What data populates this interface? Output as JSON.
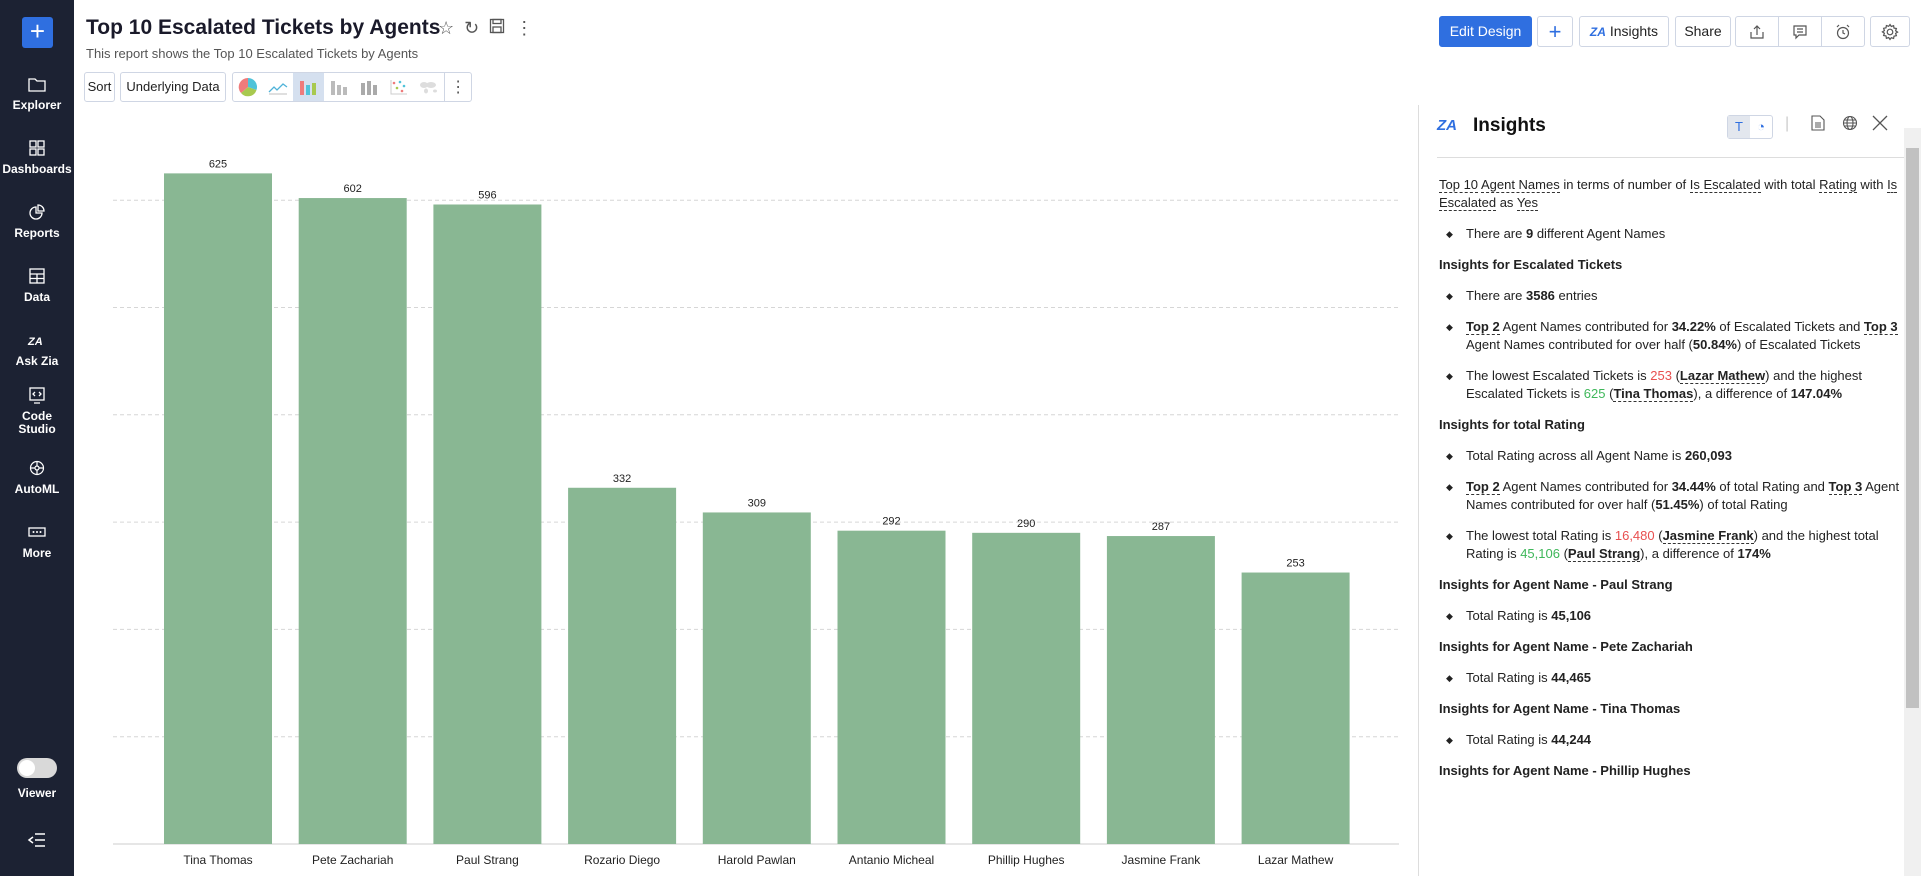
{
  "sidebar": {
    "items": [
      {
        "label": "Explorer",
        "icon": "folder-icon"
      },
      {
        "label": "Dashboards",
        "icon": "grid-icon"
      },
      {
        "label": "Reports",
        "icon": "pie-icon"
      },
      {
        "label": "Data",
        "icon": "table-icon"
      },
      {
        "label": "Ask Zia",
        "icon": "zia-icon"
      },
      {
        "label": "Code Studio",
        "icon": "code-icon"
      },
      {
        "label": "AutoML",
        "icon": "brain-icon"
      },
      {
        "label": "More",
        "icon": "more-icon"
      }
    ],
    "viewer_label": "Viewer"
  },
  "header": {
    "title": "Top 10 Escalated Tickets by Agents",
    "subtitle": "This report shows the Top 10 Escalated Tickets by Agents",
    "sort_label": "Sort",
    "underlying_label": "Underlying Data",
    "edit_design_label": "Edit Design",
    "insights_label": "Insights",
    "share_label": "Share",
    "zia_logo": "ZIA"
  },
  "colors": {
    "bar": "#89b793",
    "accent": "#2f6fe0",
    "sidebar": "#1c2233",
    "low": "#e84f4f",
    "high": "#3fb75a"
  },
  "chart_data": {
    "type": "bar",
    "categories": [
      "Tina Thomas",
      "Pete Zachariah",
      "Paul Strang",
      "Rozario Diego",
      "Harold Pawlan",
      "Antanio Micheal",
      "Phillip Hughes",
      "Jasmine Frank",
      "Lazar Mathew"
    ],
    "values": [
      625,
      602,
      596,
      332,
      309,
      292,
      290,
      287,
      253
    ],
    "ylim": [
      0,
      625
    ],
    "grid": true,
    "gridlines": [
      100,
      200,
      300,
      400,
      500,
      600
    ],
    "data_labels": true
  },
  "insights": {
    "title": "Insights",
    "blocks": [
      {
        "type": "p",
        "segs": [
          {
            "t": "Top 10",
            "u": 1
          },
          {
            "t": " "
          },
          {
            "t": "Agent Names",
            "u": 1
          },
          {
            "t": " in terms of number of "
          },
          {
            "t": "Is Escalated",
            "u": 1
          },
          {
            "t": " with total "
          },
          {
            "t": "Rating",
            "u": 1
          },
          {
            "t": " with "
          },
          {
            "t": "Is Escalated",
            "u": 1
          },
          {
            "t": " as "
          },
          {
            "t": "Yes",
            "u": 1
          }
        ]
      },
      {
        "type": "li",
        "segs": [
          {
            "t": "There are "
          },
          {
            "t": "9",
            "b": 1
          },
          {
            "t": " different Agent Names"
          }
        ]
      },
      {
        "type": "h",
        "segs": [
          {
            "t": "Insights for Escalated Tickets"
          }
        ]
      },
      {
        "type": "li",
        "segs": [
          {
            "t": "There are "
          },
          {
            "t": "3586",
            "b": 1
          },
          {
            "t": " entries"
          }
        ]
      },
      {
        "type": "li",
        "segs": [
          {
            "t": "Top 2",
            "u": 1
          },
          {
            "t": " Agent Names contributed for "
          },
          {
            "t": "34.22%",
            "b": 1
          },
          {
            "t": " of Escalated Tickets and "
          },
          {
            "t": "Top 3",
            "u": 1
          },
          {
            "t": " Agent Names contributed for over half ("
          },
          {
            "t": "50.84%",
            "b": 1
          },
          {
            "t": ") of Escalated Tickets"
          }
        ]
      },
      {
        "type": "li",
        "segs": [
          {
            "t": "The lowest Escalated Tickets is "
          },
          {
            "t": "253",
            "c": "low"
          },
          {
            "t": " ("
          },
          {
            "t": "Lazar Mathew",
            "u": 1
          },
          {
            "t": ") and the highest Escalated Tickets is "
          },
          {
            "t": "625",
            "c": "high"
          },
          {
            "t": " ("
          },
          {
            "t": "Tina Thomas",
            "u": 1
          },
          {
            "t": "), a difference of "
          },
          {
            "t": "147.04%",
            "b": 1
          }
        ]
      },
      {
        "type": "h",
        "segs": [
          {
            "t": "Insights for total Rating"
          }
        ]
      },
      {
        "type": "li",
        "segs": [
          {
            "t": "Total Rating across all Agent Name is "
          },
          {
            "t": "260,093",
            "b": 1
          }
        ]
      },
      {
        "type": "li",
        "segs": [
          {
            "t": "Top 2",
            "u": 1
          },
          {
            "t": " Agent Names contributed for "
          },
          {
            "t": "34.44%",
            "b": 1
          },
          {
            "t": " of total Rating and "
          },
          {
            "t": "Top 3",
            "u": 1
          },
          {
            "t": " Agent Names contributed for over half ("
          },
          {
            "t": "51.45%",
            "b": 1
          },
          {
            "t": ") of total Rating"
          }
        ]
      },
      {
        "type": "li",
        "segs": [
          {
            "t": "The lowest total Rating is "
          },
          {
            "t": "16,480",
            "c": "low"
          },
          {
            "t": " ("
          },
          {
            "t": "Jasmine Frank",
            "u": 1
          },
          {
            "t": ") and the highest total Rating is "
          },
          {
            "t": "45,106",
            "c": "high"
          },
          {
            "t": " ("
          },
          {
            "t": "Paul Strang",
            "u": 1
          },
          {
            "t": "), a difference of "
          },
          {
            "t": "174%",
            "b": 1
          }
        ]
      },
      {
        "type": "h",
        "segs": [
          {
            "t": "Insights for Agent Name - Paul Strang"
          }
        ]
      },
      {
        "type": "li",
        "segs": [
          {
            "t": "Total Rating is "
          },
          {
            "t": "45,106",
            "b": 1
          }
        ]
      },
      {
        "type": "h",
        "segs": [
          {
            "t": "Insights for Agent Name - Pete Zachariah"
          }
        ]
      },
      {
        "type": "li",
        "segs": [
          {
            "t": "Total Rating is "
          },
          {
            "t": "44,465",
            "b": 1
          }
        ]
      },
      {
        "type": "h",
        "segs": [
          {
            "t": "Insights for Agent Name - Tina Thomas"
          }
        ]
      },
      {
        "type": "li",
        "segs": [
          {
            "t": "Total Rating is "
          },
          {
            "t": "44,244",
            "b": 1
          }
        ]
      },
      {
        "type": "h",
        "segs": [
          {
            "t": "Insights for Agent Name - Phillip Hughes"
          }
        ]
      }
    ]
  }
}
